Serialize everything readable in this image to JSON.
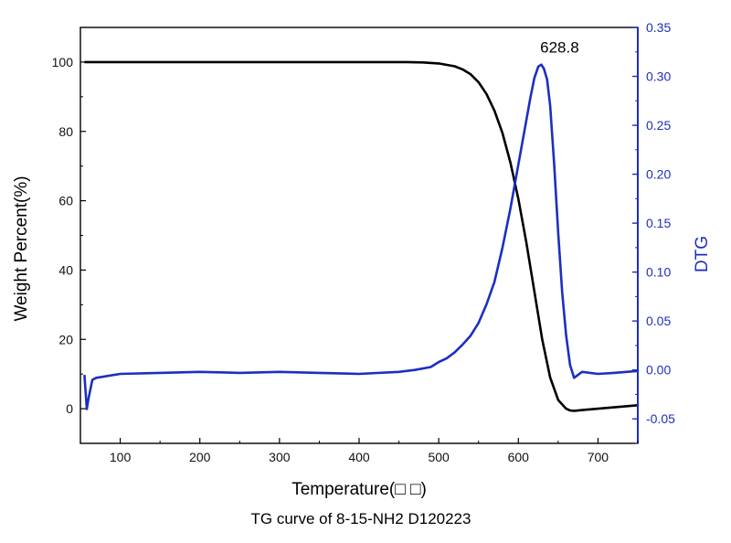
{
  "chart_data": {
    "type": "line",
    "caption": "TG curve of 8-15-NH2  D120223",
    "xlabel": "Temperature(□ □)",
    "ylabel_left": "Weight Percent(%)",
    "ylabel_right": "DTG",
    "xlim": [
      50,
      750
    ],
    "ylim_left": [
      -10,
      110
    ],
    "ylim_right": [
      -0.075,
      0.35
    ],
    "xticks": [
      "100",
      "200",
      "300",
      "400",
      "500",
      "600",
      "700"
    ],
    "yticks_left": [
      "0",
      "20",
      "40",
      "60",
      "80",
      "100"
    ],
    "yticks_right": [
      "-0.05",
      "0.00",
      "0.05",
      "0.10",
      "0.15",
      "0.20",
      "0.25",
      "0.30",
      "0.35"
    ],
    "annotation": {
      "text": "628.8",
      "x": 628.8,
      "y": 0.312
    },
    "grid": false,
    "legend": "none",
    "series": [
      {
        "axis": "left",
        "color": "#000000",
        "x": [
          55,
          100,
          200,
          300,
          400,
          460,
          480,
          500,
          520,
          530,
          540,
          550,
          560,
          570,
          580,
          590,
          600,
          610,
          620,
          630,
          640,
          650,
          660,
          665,
          670,
          680,
          700,
          750
        ],
        "y": [
          100,
          100,
          100,
          100,
          100,
          100,
          99.9,
          99.6,
          98.8,
          97.9,
          96.5,
          94.2,
          90.8,
          86,
          79.5,
          71,
          60.5,
          48,
          34,
          20,
          9,
          2.5,
          0,
          -0.5,
          -0.6,
          -0.4,
          0,
          1
        ]
      },
      {
        "axis": "right",
        "color": "#1c2fbf",
        "x": [
          55,
          58,
          60,
          65,
          70,
          100,
          150,
          200,
          250,
          300,
          350,
          400,
          450,
          470,
          490,
          500,
          510,
          520,
          530,
          540,
          550,
          560,
          570,
          580,
          590,
          600,
          610,
          615,
          620,
          625,
          628.8,
          632,
          636,
          640,
          645,
          650,
          655,
          660,
          665,
          670,
          680,
          700,
          720,
          750
        ],
        "y": [
          -0.005,
          -0.04,
          -0.03,
          -0.01,
          -0.008,
          -0.004,
          -0.003,
          -0.002,
          -0.003,
          -0.002,
          -0.003,
          -0.004,
          -0.002,
          0,
          0.003,
          0.008,
          0.012,
          0.018,
          0.026,
          0.035,
          0.048,
          0.067,
          0.09,
          0.125,
          0.165,
          0.21,
          0.255,
          0.278,
          0.298,
          0.31,
          0.312,
          0.308,
          0.297,
          0.27,
          0.21,
          0.14,
          0.08,
          0.035,
          0.005,
          -0.008,
          -0.002,
          -0.004,
          -0.003,
          -0.001
        ]
      }
    ]
  }
}
